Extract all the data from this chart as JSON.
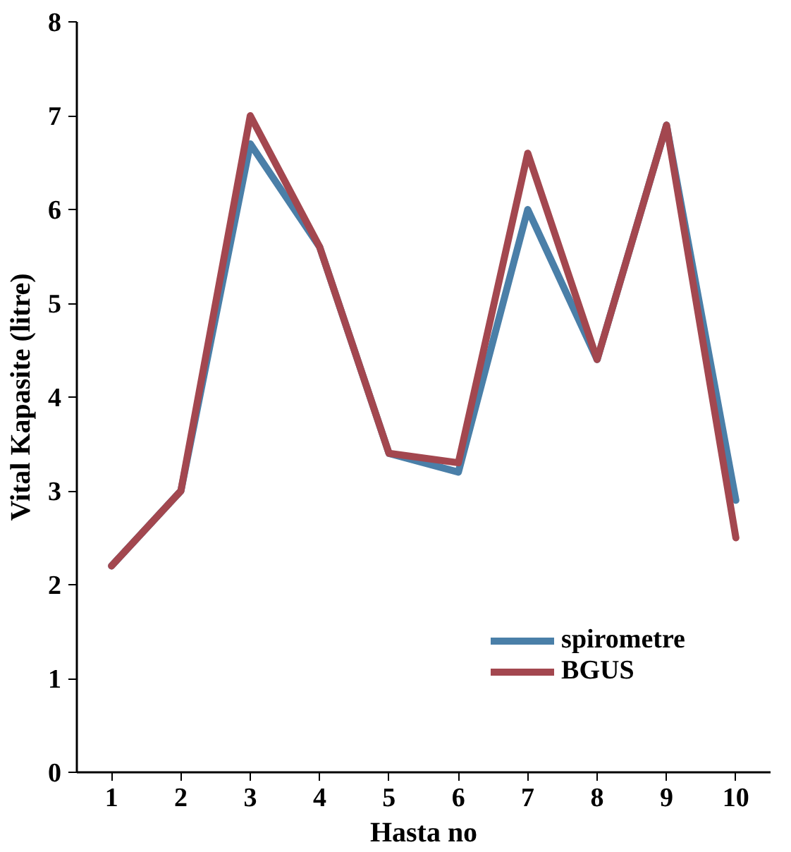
{
  "chart_data": {
    "type": "line",
    "xlabel": "Hasta no",
    "ylabel": "Vital Kapasite (litre)",
    "categories": [
      "1",
      "2",
      "3",
      "4",
      "5",
      "6",
      "7",
      "8",
      "9",
      "10"
    ],
    "series": [
      {
        "name": "spirometre",
        "color": "#4a7fa8",
        "values": [
          2.2,
          3.0,
          6.7,
          5.6,
          3.4,
          3.2,
          6.0,
          4.4,
          6.9,
          2.9
        ]
      },
      {
        "name": "BGUS",
        "color": "#a3474f",
        "values": [
          2.2,
          3.0,
          7.0,
          5.6,
          3.4,
          3.3,
          6.6,
          4.4,
          6.9,
          2.5
        ]
      }
    ],
    "ylim": [
      0,
      8
    ],
    "yticks": [
      0,
      1,
      2,
      3,
      4,
      5,
      6,
      7,
      8
    ],
    "grid": false,
    "legend": "bottom right",
    "marker": "none",
    "line_style": "solid"
  }
}
